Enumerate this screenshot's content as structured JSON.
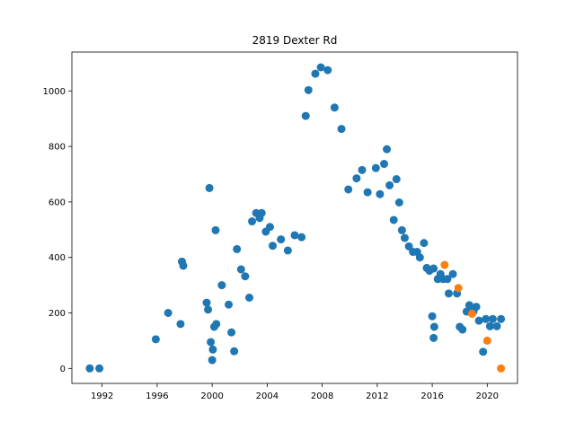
{
  "chart_data": {
    "type": "scatter",
    "title": "2819 Dexter Rd",
    "xlabel": "",
    "ylabel": "",
    "xlim": [
      1989.8,
      2022.2
    ],
    "ylim": [
      -54,
      1140
    ],
    "x_ticks": [
      1992,
      1996,
      2000,
      2004,
      2008,
      2012,
      2016,
      2020
    ],
    "y_ticks": [
      0,
      200,
      400,
      600,
      800,
      1000
    ],
    "grid": false,
    "legend": "none",
    "series": [
      {
        "color": "#1f77b4",
        "points": [
          [
            1991.1,
            0
          ],
          [
            1991.8,
            0
          ],
          [
            1995.9,
            105
          ],
          [
            1996.8,
            200
          ],
          [
            1997.7,
            160
          ],
          [
            1997.8,
            385
          ],
          [
            1997.9,
            370
          ],
          [
            1999.6,
            237
          ],
          [
            1999.7,
            212
          ],
          [
            1999.8,
            650
          ],
          [
            1999.9,
            95
          ],
          [
            2000.0,
            30
          ],
          [
            2000.05,
            68
          ],
          [
            2000.15,
            150
          ],
          [
            2000.25,
            498
          ],
          [
            2000.3,
            160
          ],
          [
            2000.7,
            300
          ],
          [
            2001.2,
            230
          ],
          [
            2001.4,
            130
          ],
          [
            2001.6,
            62
          ],
          [
            2001.8,
            430
          ],
          [
            2002.1,
            357
          ],
          [
            2002.4,
            332
          ],
          [
            2002.7,
            255
          ],
          [
            2002.9,
            530
          ],
          [
            2003.2,
            560
          ],
          [
            2003.45,
            542
          ],
          [
            2003.6,
            560
          ],
          [
            2003.9,
            493
          ],
          [
            2004.2,
            510
          ],
          [
            2004.4,
            442
          ],
          [
            2005.0,
            465
          ],
          [
            2005.5,
            425
          ],
          [
            2006.0,
            480
          ],
          [
            2006.5,
            473
          ],
          [
            2006.8,
            910
          ],
          [
            2007.0,
            1003
          ],
          [
            2007.5,
            1062
          ],
          [
            2007.9,
            1085
          ],
          [
            2008.4,
            1075
          ],
          [
            2008.9,
            940
          ],
          [
            2009.4,
            863
          ],
          [
            2009.9,
            645
          ],
          [
            2010.5,
            685
          ],
          [
            2010.9,
            715
          ],
          [
            2011.3,
            635
          ],
          [
            2011.9,
            722
          ],
          [
            2012.2,
            628
          ],
          [
            2012.5,
            737
          ],
          [
            2012.7,
            790
          ],
          [
            2012.9,
            660
          ],
          [
            2013.2,
            535
          ],
          [
            2013.4,
            682
          ],
          [
            2013.6,
            598
          ],
          [
            2013.8,
            498
          ],
          [
            2014.0,
            470
          ],
          [
            2014.3,
            440
          ],
          [
            2014.6,
            420
          ],
          [
            2014.9,
            420
          ],
          [
            2015.1,
            400
          ],
          [
            2015.4,
            452
          ],
          [
            2015.6,
            362
          ],
          [
            2015.8,
            352
          ],
          [
            2016.1,
            360
          ],
          [
            2016.0,
            188
          ],
          [
            2016.1,
            110
          ],
          [
            2016.15,
            150
          ],
          [
            2016.4,
            322
          ],
          [
            2016.6,
            340
          ],
          [
            2016.8,
            322
          ],
          [
            2017.1,
            322
          ],
          [
            2017.2,
            270
          ],
          [
            2017.5,
            340
          ],
          [
            2017.8,
            270
          ],
          [
            2018.0,
            150
          ],
          [
            2018.2,
            140
          ],
          [
            2018.5,
            205
          ],
          [
            2018.7,
            228
          ],
          [
            2019.0,
            205
          ],
          [
            2019.2,
            222
          ],
          [
            2019.4,
            172
          ],
          [
            2019.7,
            60
          ],
          [
            2019.9,
            178
          ],
          [
            2020.2,
            152
          ],
          [
            2020.4,
            178
          ],
          [
            2020.7,
            152
          ],
          [
            2021.0,
            178
          ]
        ]
      },
      {
        "color": "#ff7f0e",
        "points": [
          [
            2016.9,
            373
          ],
          [
            2017.9,
            290
          ],
          [
            2018.9,
            197
          ],
          [
            2020.0,
            100
          ],
          [
            2021.0,
            0
          ]
        ]
      }
    ]
  }
}
